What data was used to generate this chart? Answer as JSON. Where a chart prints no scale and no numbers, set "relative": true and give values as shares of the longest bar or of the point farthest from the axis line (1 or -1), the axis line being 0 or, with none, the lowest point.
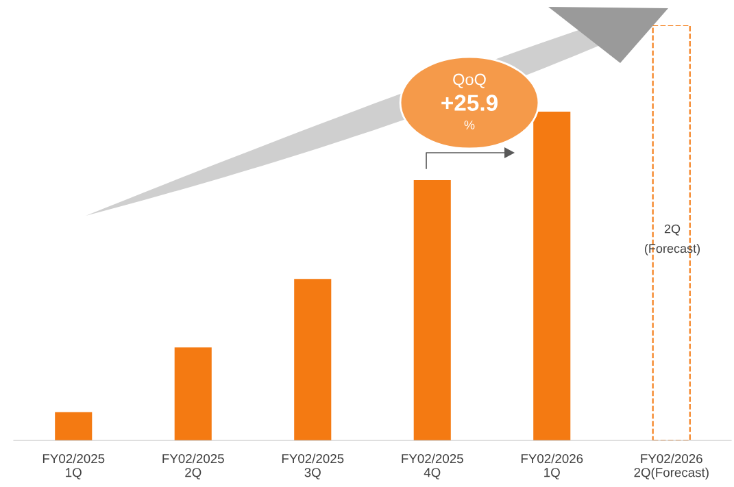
{
  "chart_data": {
    "type": "bar",
    "relative": true,
    "categories": [
      "FY02/2025\n1Q",
      "FY02/2025\n2Q",
      "FY02/2025\n3Q",
      "FY02/2025\n4Q",
      "FY02/2026\n1Q",
      "FY02/2026\n2Q(Forecast)"
    ],
    "series": [
      {
        "color": "#f47a12",
        "values": [
          0.068,
          0.224,
          0.389,
          0.627,
          0.792,
          null
        ]
      },
      {
        "color": "#f47a12",
        "line_style": "dashed",
        "values": [
          null,
          null,
          null,
          null,
          null,
          1.0
        ]
      }
    ],
    "annotations": [
      "QoQ",
      "+25.9",
      "%",
      "2Q\n(Forecast)"
    ],
    "grid": false,
    "legend": false
  }
}
